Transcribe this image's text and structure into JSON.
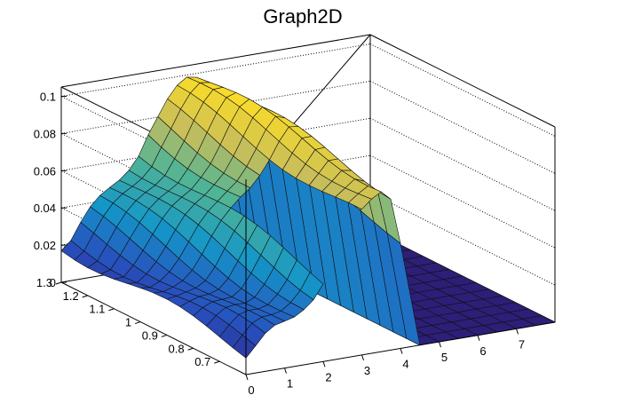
{
  "chart_data": {
    "type": "surface",
    "title": "Graph2D",
    "xlabel": "",
    "ylabel": "",
    "zlabel": "",
    "xlim": [
      0,
      8
    ],
    "ylim": [
      0.6,
      1.3
    ],
    "zlim": [
      0,
      0.105
    ],
    "x_ticks": [
      "0",
      "1",
      "2",
      "3",
      "4",
      "5",
      "6",
      "7"
    ],
    "y_ticks": [
      "0.7",
      "0.8",
      "0.9",
      "1",
      "1.1",
      "1.2",
      "1.3"
    ],
    "z_ticks": [
      "0",
      "0.02",
      "0.04",
      "0.06",
      "0.08",
      "0.1"
    ],
    "grid": true,
    "colormap": "viridis-like",
    "x_grid": [
      0,
      0.25,
      0.5,
      0.75,
      1,
      1.25,
      1.5,
      1.75,
      2,
      2.25,
      2.5,
      2.75,
      3,
      3.25,
      3.5,
      3.75,
      4,
      4.5,
      5,
      5.5,
      6,
      6.5,
      7,
      7.5,
      8
    ],
    "y_grid": [
      0.6,
      0.65,
      0.7,
      0.75,
      0.8,
      0.85,
      0.9,
      0.95,
      1.0,
      1.05,
      1.1,
      1.15,
      1.2,
      1.25,
      1.3
    ],
    "z_profile": {
      "x": [
        0,
        0.25,
        0.5,
        0.75,
        1,
        1.25,
        1.5,
        1.75,
        2,
        2.25,
        2.5,
        2.75,
        3,
        3.25,
        3.5,
        3.75,
        4,
        4.5,
        5,
        5.5,
        6,
        6.5,
        7,
        7.5,
        8
      ],
      "z_far": [
        0.02,
        0.022,
        0.028,
        0.034,
        0.04,
        0.046,
        0.052,
        0.058,
        0.064,
        0.072,
        0.078,
        0.085,
        0.092,
        0.098,
        0.1,
        0.098,
        0.07,
        0.0,
        0.0,
        0.0,
        0.0,
        0.0,
        0.0,
        0.0,
        0.0
      ],
      "z_near": [
        0.012,
        0.015,
        0.018,
        0.02,
        0.022,
        0.026,
        0.032,
        0.038,
        0.045,
        0.052,
        0.06,
        0.068,
        0.075,
        0.082,
        0.088,
        0.085,
        0.06,
        0.0,
        0.0,
        0.0,
        0.0,
        0.0,
        0.0,
        0.0,
        0.0
      ]
    },
    "hole": {
      "x": [
        2.1,
        3.0
      ],
      "y": [
        0.6,
        0.95
      ]
    }
  }
}
